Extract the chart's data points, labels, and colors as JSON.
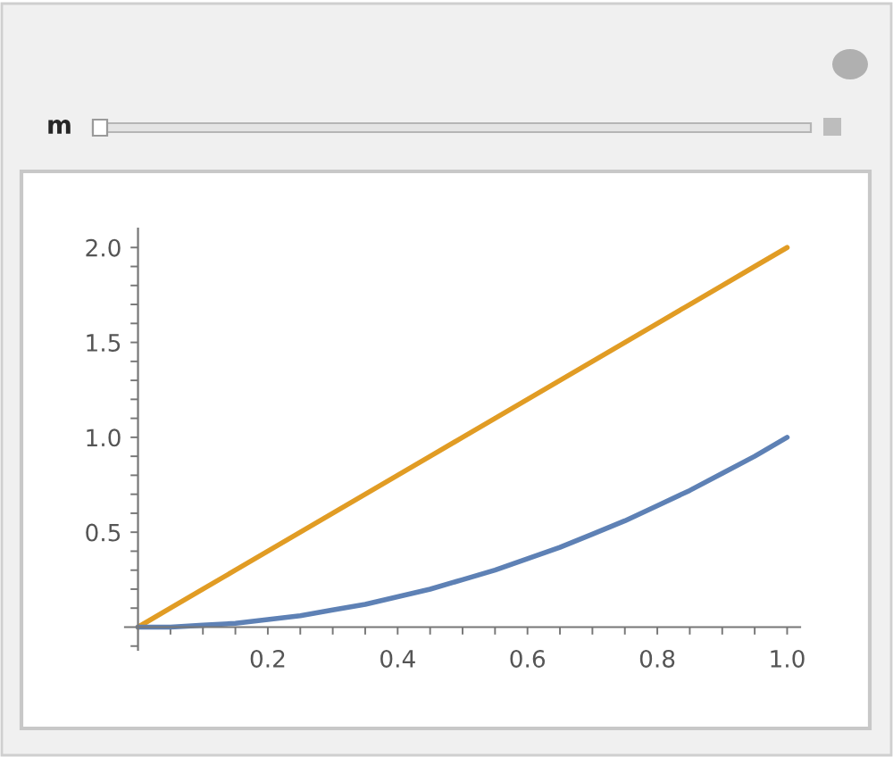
{
  "chart_data": {
    "type": "line",
    "annotations": [
      "m"
    ],
    "x": [
      0,
      0.05,
      0.1,
      0.15,
      0.2,
      0.25,
      0.3,
      0.35,
      0.4,
      0.45,
      0.5,
      0.55,
      0.6,
      0.65,
      0.7,
      0.75,
      0.8,
      0.85,
      0.9,
      0.95,
      1.0
    ],
    "series": [
      {
        "color": "#e19c24",
        "values": [
          0,
          0.1,
          0.2,
          0.3,
          0.4,
          0.5,
          0.6,
          0.7,
          0.8,
          0.9,
          1.0,
          1.1,
          1.2,
          1.3,
          1.4,
          1.5,
          1.6,
          1.7,
          1.8,
          1.9,
          2.0
        ]
      },
      {
        "color": "#5e81b5",
        "values": [
          0,
          0.0,
          0.01,
          0.02,
          0.04,
          0.06,
          0.09,
          0.12,
          0.16,
          0.2,
          0.25,
          0.3,
          0.36,
          0.42,
          0.49,
          0.56,
          0.64,
          0.72,
          0.81,
          0.9,
          1.0
        ]
      }
    ],
    "xlim": [
      -0.02,
      1.02
    ],
    "ylim": [
      -0.12,
      2.1
    ],
    "xticks": [
      {
        "value": 0.05,
        "label": null
      },
      {
        "value": 0.1,
        "label": null
      },
      {
        "value": 0.15,
        "label": null
      },
      0.2,
      {
        "value": 0.25,
        "label": null
      },
      {
        "value": 0.3,
        "label": null
      },
      {
        "value": 0.35,
        "label": null
      },
      0.4,
      {
        "value": 0.45,
        "label": null
      },
      {
        "value": 0.5,
        "label": null
      },
      {
        "value": 0.55,
        "label": null
      },
      0.6,
      {
        "value": 0.65,
        "label": null
      },
      {
        "value": 0.7,
        "label": null
      },
      {
        "value": 0.75,
        "label": null
      },
      0.8,
      {
        "value": 0.85,
        "label": null
      },
      {
        "value": 0.9,
        "label": null
      },
      {
        "value": 0.95,
        "label": null
      },
      {
        "value": 1.0,
        "label": "1.0"
      }
    ],
    "yticks": [
      {
        "value": -0.1,
        "label": null
      },
      {
        "value": 0.1,
        "label": null
      },
      {
        "value": 0.2,
        "label": null
      },
      {
        "value": 0.3,
        "label": null
      },
      {
        "value": 0.4,
        "label": null
      },
      0.5,
      {
        "value": 0.6,
        "label": null
      },
      {
        "value": 0.7,
        "label": null
      },
      {
        "value": 0.8,
        "label": null
      },
      {
        "value": 0.9,
        "label": null
      },
      {
        "value": 1.0,
        "label": "1.0"
      },
      {
        "value": 1.1,
        "label": null
      },
      {
        "value": 1.2,
        "label": null
      },
      {
        "value": 1.3,
        "label": null
      },
      {
        "value": 1.4,
        "label": null
      },
      1.5,
      {
        "value": 1.6,
        "label": null
      },
      {
        "value": 1.7,
        "label": null
      },
      {
        "value": 1.8,
        "label": null
      },
      {
        "value": 1.9,
        "label": null
      },
      {
        "value": 2.0,
        "label": "2.0"
      }
    ],
    "grid": false,
    "marker": "none",
    "line_style": "solid"
  }
}
